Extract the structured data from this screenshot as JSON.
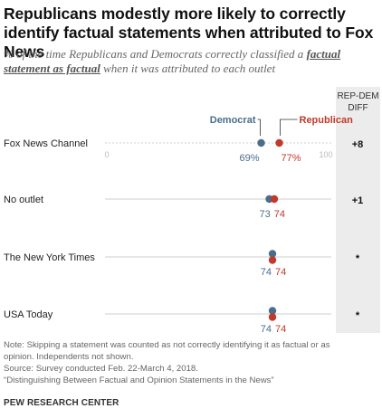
{
  "title": "Republicans modestly more likely to correctly identify factual statements when attributed to Fox News",
  "subtitle": {
    "pre": "% of the time Republicans and Democrats correctly classified a ",
    "emph": "factual statement as factual",
    "post": " when it was attributed to each outlet"
  },
  "diff_header": "REP-DEM DIFF",
  "chart_data": {
    "type": "dot",
    "axis": {
      "min": 0,
      "max": 100,
      "tick_labels": [
        "0",
        "100"
      ]
    },
    "legend": {
      "democrat": "Democrat",
      "republican": "Republican"
    },
    "series_colors": {
      "democrat": "#4a6d8c",
      "republican": "#c0392b"
    },
    "categories": [
      "Fox News Channel",
      "No outlet",
      "The New York Times",
      "USA Today"
    ],
    "rows": [
      {
        "label": "Fox News Channel",
        "democrat": 69,
        "republican": 77,
        "democrat_label": "69%",
        "republican_label": "77%",
        "diff": "+8"
      },
      {
        "label": "No outlet",
        "democrat": 73,
        "republican": 74,
        "democrat_label": "73",
        "republican_label": "74",
        "diff": "+1"
      },
      {
        "label": "The New York Times",
        "democrat": 74,
        "republican": 74,
        "democrat_label": "74",
        "republican_label": "74",
        "diff": "*"
      },
      {
        "label": "USA Today",
        "democrat": 74,
        "republican": 74,
        "democrat_label": "74",
        "republican_label": "74",
        "diff": "*"
      }
    ]
  },
  "notes": [
    "Note: Skipping a statement was counted as not correctly identifying it as factual or as",
    "opinion. Independents not shown.",
    "Source: Survey conducted Feb. 22-March 4, 2018.",
    "“Distinguishing Between Factual and Opinion Statements in the News”"
  ],
  "org": "PEW RESEARCH CENTER"
}
